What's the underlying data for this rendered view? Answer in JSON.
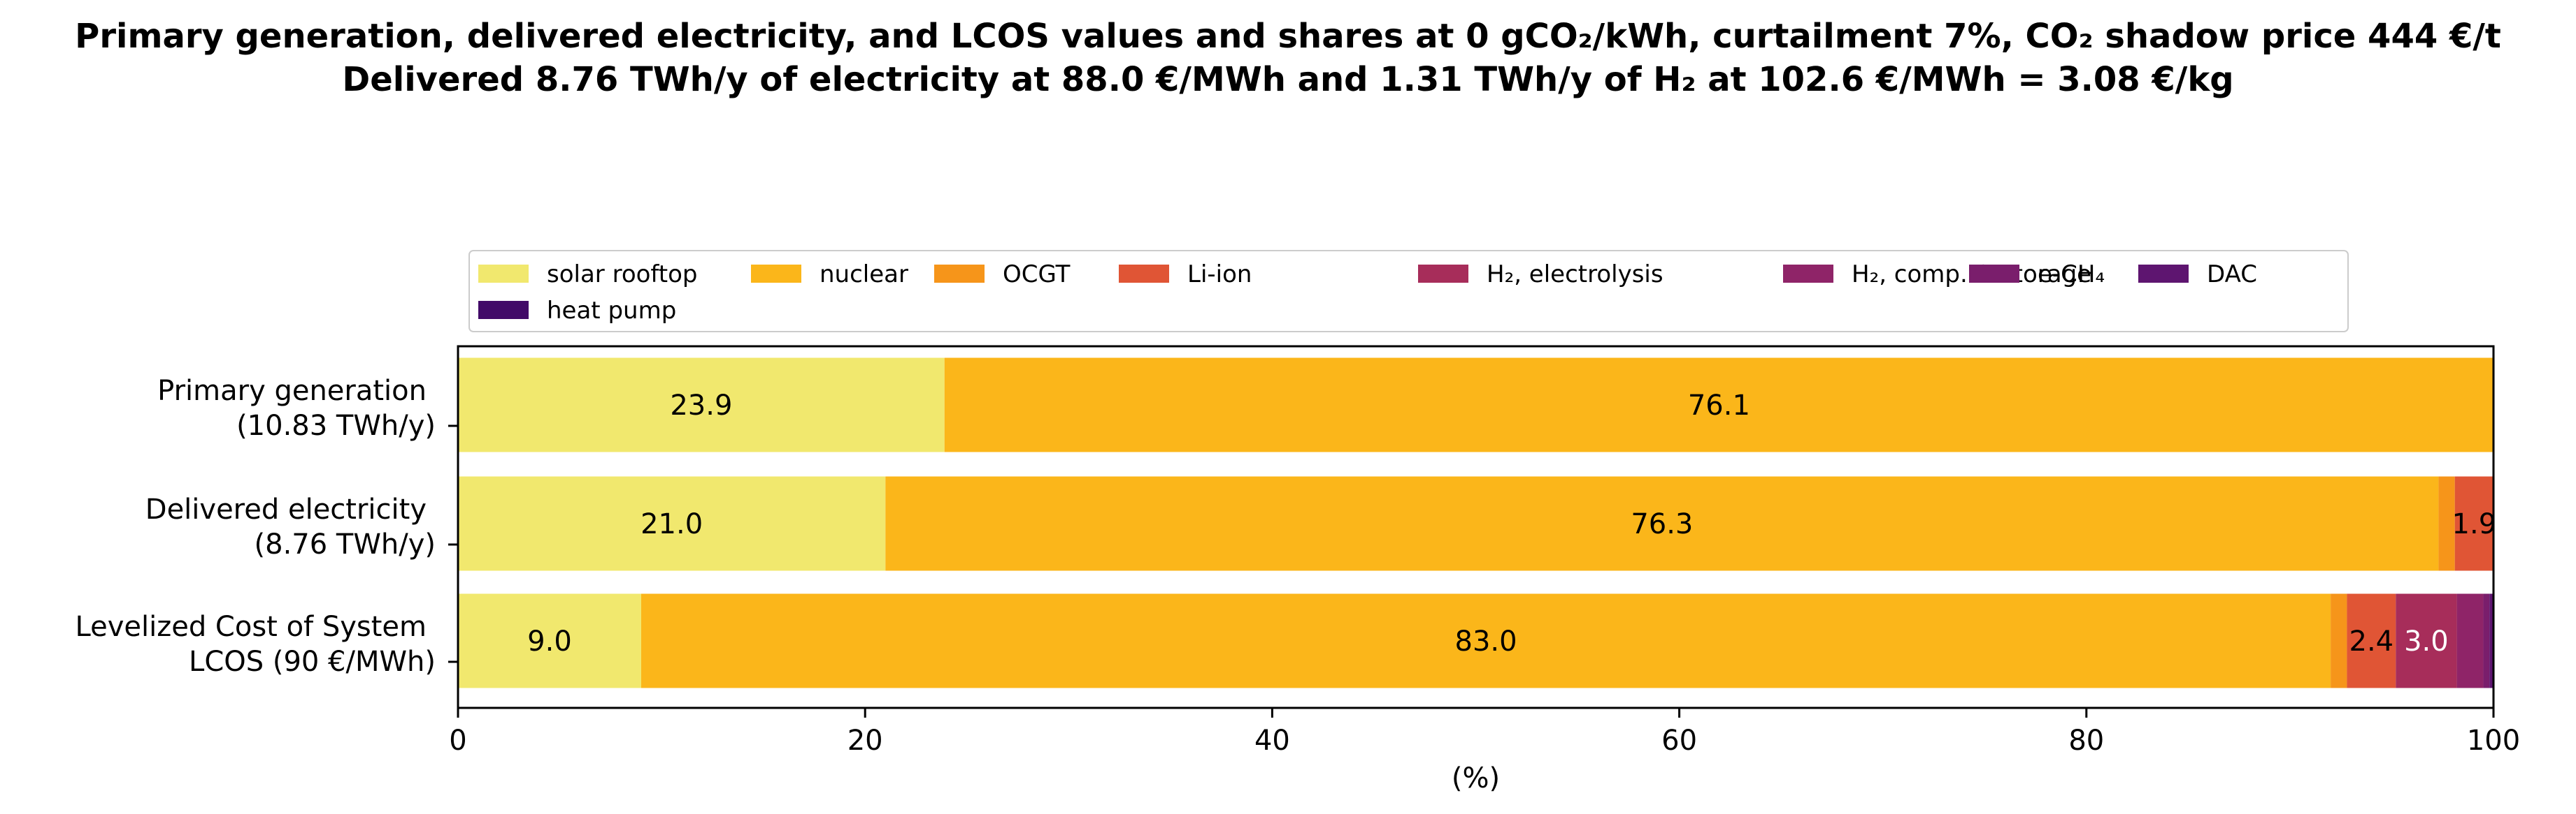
{
  "title_line1": "Primary generation, delivered electricity, and LCOS values and shares at 0 gCO₂/kWh, curtailment 7%, CO₂ shadow price 444 €/t",
  "title_line2": "Delivered 8.76 TWh/y of electricity at 88.0 €/MWh and 1.31 TWh/y of H₂ at 102.6 €/MWh = 3.08 €/kg",
  "chart_data": {
    "type": "bar",
    "orientation": "horizontal",
    "stacked": true,
    "categories": [
      [
        "Primary generation",
        "(10.83 TWh/y)"
      ],
      [
        "Delivered electricity",
        "(8.76 TWh/y)"
      ],
      [
        "Levelized Cost of System",
        "LCOS  (90 €/MWh)"
      ]
    ],
    "series": [
      {
        "name": "solar rooftop",
        "color": "#f1e86e",
        "values": [
          23.9,
          21.0,
          9.0
        ]
      },
      {
        "name": "nuclear",
        "color": "#fbb61a",
        "values": [
          76.1,
          76.3,
          83.0
        ]
      },
      {
        "name": "OCGT",
        "color": "#f6951a",
        "values": [
          0,
          0.8,
          0.8
        ]
      },
      {
        "name": "Li-ion",
        "color": "#e05535",
        "values": [
          0,
          1.9,
          2.4
        ]
      },
      {
        "name": "H₂, electrolysis",
        "color": "#a72d5a",
        "values": [
          0,
          0,
          3.0
        ]
      },
      {
        "name": "H₂, comp. & storage",
        "color": "#8f2468",
        "values": [
          0,
          0,
          1.3
        ]
      },
      {
        "name": "e-CH₄",
        "color": "#7a1e6c",
        "values": [
          0,
          0,
          0.3
        ]
      },
      {
        "name": "DAC",
        "color": "#5e1570",
        "values": [
          0,
          0,
          0.2
        ]
      },
      {
        "name": "heat pump",
        "color": "#420a68",
        "values": [
          0,
          0,
          0.1
        ]
      }
    ],
    "bar_labels": [
      [
        {
          "series": "solar rooftop",
          "text": "23.9"
        },
        {
          "series": "nuclear",
          "text": "76.1"
        }
      ],
      [
        {
          "series": "solar rooftop",
          "text": "21.0"
        },
        {
          "series": "nuclear",
          "text": "76.3"
        },
        {
          "series": "Li-ion",
          "text": "1.9"
        }
      ],
      [
        {
          "series": "solar rooftop",
          "text": "9.0"
        },
        {
          "series": "nuclear",
          "text": "83.0"
        },
        {
          "series": "Li-ion",
          "text": "2.4"
        },
        {
          "series": "H₂, electrolysis",
          "text": "3.0",
          "color": "#ffffff"
        }
      ]
    ],
    "xlabel": "(%)",
    "xlim": [
      0,
      100
    ],
    "xticks": [
      0,
      20,
      40,
      60,
      80,
      100
    ],
    "grid": false,
    "legend_position": "top-center"
  }
}
